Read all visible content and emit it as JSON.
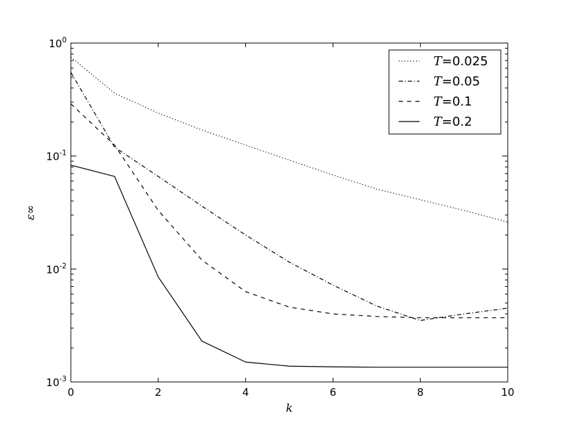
{
  "chart_data": {
    "type": "line",
    "x": [
      0,
      1,
      2,
      3,
      4,
      5,
      6,
      7,
      8,
      9,
      10
    ],
    "xlabel": "k",
    "ylabel": "ε∞",
    "xlim": [
      0,
      10
    ],
    "ylim": [
      0.001,
      1
    ],
    "yscale": "log",
    "x_ticks": [
      "0",
      "2",
      "4",
      "6",
      "8",
      "10"
    ],
    "y_ticks": [
      {
        "base": "10",
        "exp": "0"
      },
      {
        "base": "10",
        "exp": "-1"
      },
      {
        "base": "10",
        "exp": "-2"
      },
      {
        "base": "10",
        "exp": "-3"
      }
    ],
    "grid": false,
    "legend_position": "top-right",
    "series": [
      {
        "name": "T=0.025",
        "label_var": "T",
        "label_eq": "=",
        "label_val": "0.025",
        "linestyle": "dotted",
        "values": [
          0.75,
          0.36,
          0.24,
          0.17,
          0.125,
          0.092,
          0.068,
          0.051,
          0.041,
          0.033,
          0.026
        ]
      },
      {
        "name": "T=0.05",
        "label_var": "T",
        "label_eq": "=",
        "label_val": "0.05",
        "linestyle": "dashdot",
        "values": [
          0.55,
          0.12,
          0.066,
          0.036,
          0.02,
          0.0115,
          0.0072,
          0.0047,
          0.0035,
          0.004,
          0.0045
        ]
      },
      {
        "name": "T=0.1",
        "label_var": "T",
        "label_eq": "=",
        "label_val": "0.1",
        "linestyle": "dashed",
        "values": [
          0.29,
          0.125,
          0.033,
          0.012,
          0.0063,
          0.0046,
          0.004,
          0.0038,
          0.0037,
          0.0037,
          0.0037
        ]
      },
      {
        "name": "T=0.2",
        "label_var": "T",
        "label_eq": "=",
        "label_val": "0.2",
        "linestyle": "solid",
        "values": [
          0.083,
          0.066,
          0.0085,
          0.0023,
          0.0015,
          0.00138,
          0.00136,
          0.00135,
          0.00135,
          0.00135,
          0.00135
        ]
      }
    ]
  }
}
